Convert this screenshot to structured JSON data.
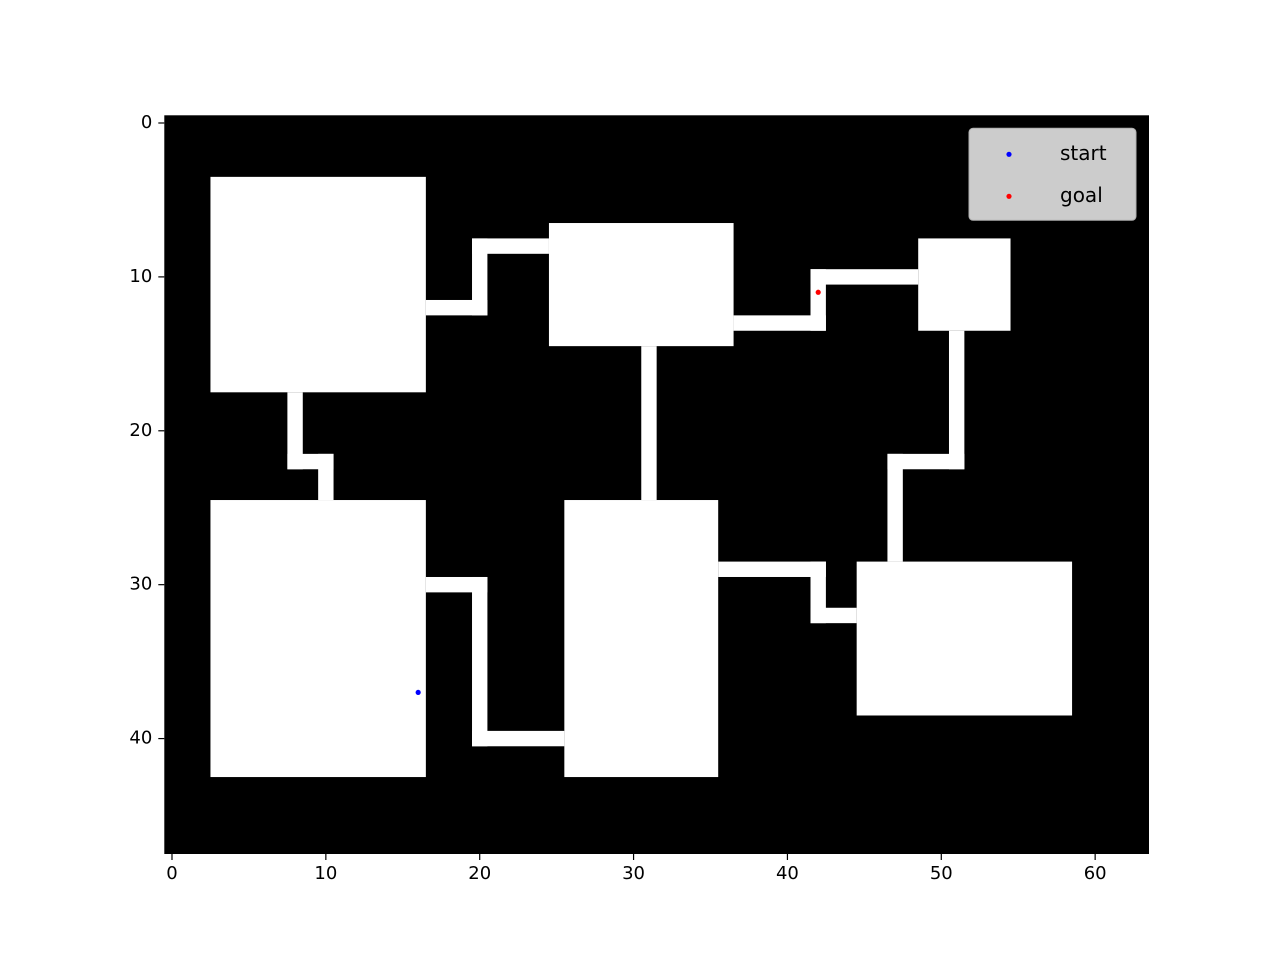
{
  "chart_data": {
    "type": "scatter",
    "xlim": [
      -0.5,
      63.5
    ],
    "ylim": [
      47.5,
      -0.5
    ],
    "xticks": [
      0,
      10,
      20,
      30,
      40,
      50,
      60
    ],
    "yticks": [
      0,
      10,
      20,
      30,
      40
    ],
    "background_color": "#000000",
    "free_color": "#ffffff",
    "free_regions": [
      [
        2.5,
        16.5,
        3.5,
        17.5
      ],
      [
        2.5,
        16.5,
        24.5,
        42.5
      ],
      [
        24.5,
        36.5,
        6.5,
        14.5
      ],
      [
        25.5,
        35.5,
        24.5,
        42.5
      ],
      [
        48.5,
        54.5,
        7.5,
        13.5
      ],
      [
        44.5,
        58.5,
        28.5,
        38.5
      ],
      [
        16.5,
        20.5,
        11.5,
        12.5
      ],
      [
        19.5,
        20.5,
        7.5,
        12.5
      ],
      [
        19.5,
        24.5,
        7.5,
        8.5
      ],
      [
        7.5,
        8.5,
        17.5,
        22.5
      ],
      [
        7.5,
        10.5,
        21.5,
        22.5
      ],
      [
        9.5,
        10.5,
        21.5,
        24.5
      ],
      [
        16.5,
        20.5,
        29.5,
        30.5
      ],
      [
        19.5,
        20.5,
        29.5,
        40.5
      ],
      [
        19.5,
        25.5,
        39.5,
        40.5
      ],
      [
        30.5,
        31.5,
        14.5,
        24.5
      ],
      [
        36.5,
        42.5,
        12.5,
        13.5
      ],
      [
        41.5,
        42.5,
        9.5,
        13.5
      ],
      [
        41.5,
        48.5,
        9.5,
        10.5
      ],
      [
        50.5,
        51.5,
        13.5,
        22.5
      ],
      [
        46.5,
        51.5,
        21.5,
        22.5
      ],
      [
        46.5,
        47.5,
        21.5,
        28.5
      ],
      [
        35.5,
        42.5,
        28.5,
        29.5
      ],
      [
        41.5,
        42.5,
        28.5,
        32.5
      ],
      [
        41.5,
        44.5,
        31.5,
        32.5
      ]
    ],
    "series": [
      {
        "name": "start",
        "color": "blue",
        "x": [
          16
        ],
        "values": [
          37
        ]
      },
      {
        "name": "goal",
        "color": "red",
        "x": [
          42
        ],
        "values": [
          11
        ]
      }
    ],
    "legend": "upper right"
  }
}
